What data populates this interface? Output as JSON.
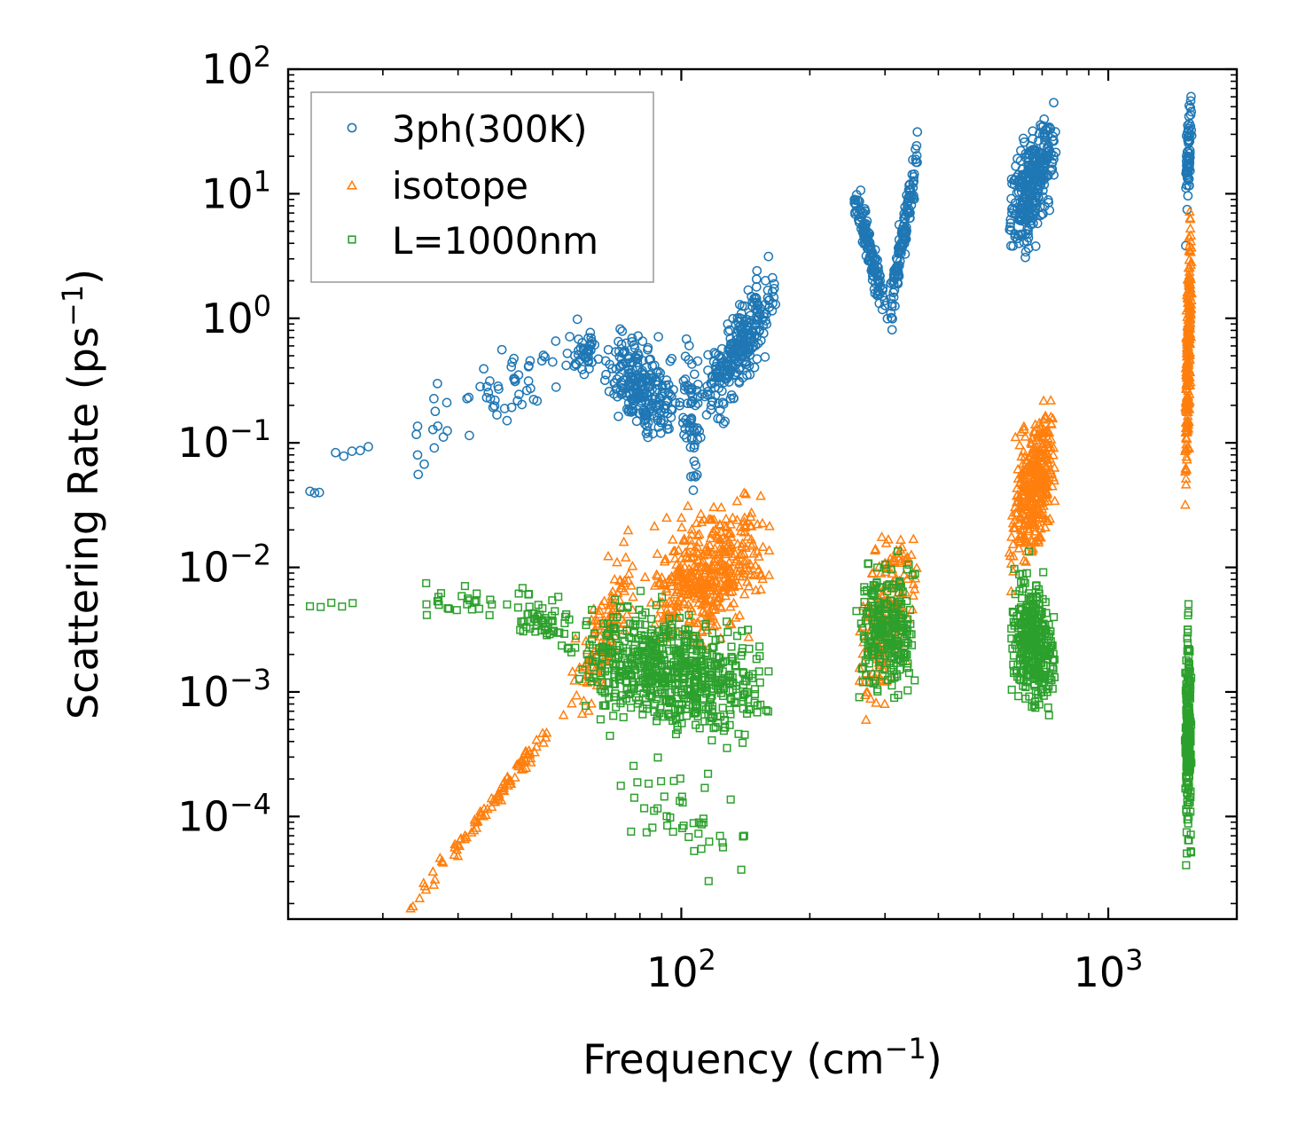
{
  "chart_data": {
    "type": "scatter",
    "title": "",
    "xlabel": "Frequency (cm",
    "xlabel_sup": "−1",
    "xlabel_end": ")",
    "ylabel": "Scattering Rate (ps",
    "ylabel_sup": "−1",
    "ylabel_end": ")",
    "xscale": "log",
    "yscale": "log",
    "xlim": [
      12,
      2000
    ],
    "ylim": [
      1.5e-05,
      100
    ],
    "x_major_ticks": [
      {
        "value": 100,
        "base": "10",
        "exp": "2"
      },
      {
        "value": 1000,
        "base": "10",
        "exp": "3"
      }
    ],
    "y_major_ticks": [
      {
        "value": 0.0001,
        "base": "10",
        "exp": "−4"
      },
      {
        "value": 0.001,
        "base": "10",
        "exp": "−3"
      },
      {
        "value": 0.01,
        "base": "10",
        "exp": "−2"
      },
      {
        "value": 0.1,
        "base": "10",
        "exp": "−1"
      },
      {
        "value": 1,
        "base": "10",
        "exp": "0"
      },
      {
        "value": 10,
        "base": "10",
        "exp": "1"
      },
      {
        "value": 100,
        "base": "10",
        "exp": "2"
      }
    ],
    "legend_position": "top-left",
    "series": [
      {
        "name": "3ph(300K)",
        "marker": "circle",
        "color": "#1f77b4",
        "segments": [
          {
            "x": [
              13.5,
              14.2
            ],
            "y": [
              0.04,
              0.038
            ],
            "n": 3,
            "spread": 0.05
          },
          {
            "x": [
              15.5,
              18.5
            ],
            "y": [
              0.078,
              0.088
            ],
            "n": 5,
            "spread": 0.06
          },
          {
            "x": [
              22,
              30
            ],
            "y": [
              0.06,
              0.2
            ],
            "n": 14,
            "spread": 0.45
          },
          {
            "x": [
              30,
              52
            ],
            "y": [
              0.2,
              0.4
            ],
            "n": 45,
            "spread": 0.3
          },
          {
            "x": [
              52,
              65
            ],
            "y": [
              0.55,
              0.5
            ],
            "n": 40,
            "spread": 0.2
          },
          {
            "x": [
              65,
              100
            ],
            "y": [
              0.5,
              0.18
            ],
            "n": 240,
            "spread": 0.35
          },
          {
            "x": [
              100,
              112
            ],
            "y": [
              0.18,
              0.15
            ],
            "n": 60,
            "spread": 0.55
          },
          {
            "x": [
              112,
              168
            ],
            "y": [
              0.2,
              1.8
            ],
            "n": 260,
            "spread": 0.32
          },
          {
            "x": [
              250,
              305
            ],
            "y": [
              12,
              1.0
            ],
            "n": 140,
            "spread": 0.18
          },
          {
            "x": [
              305,
              360
            ],
            "y": [
              1.0,
              22
            ],
            "n": 140,
            "spread": 0.18
          },
          {
            "x": [
              580,
              760
            ],
            "y": [
              6,
              25
            ],
            "n": 320,
            "spread": 0.4
          },
          {
            "x": [
              1510,
              1570
            ],
            "y": [
              10,
              40
            ],
            "n": 70,
            "spread": 0.35
          }
        ]
      },
      {
        "name": "isotope",
        "marker": "triangle",
        "color": "#ff7f0e",
        "segments": [
          {
            "x": [
              22,
              55
            ],
            "y": [
              1.5e-05,
              0.0008
            ],
            "n": 90,
            "spread": 0.08
          },
          {
            "x": [
              55,
              80
            ],
            "y": [
              0.001,
              0.01
            ],
            "n": 120,
            "spread": 0.4
          },
          {
            "x": [
              80,
              165
            ],
            "y": [
              0.005,
              0.015
            ],
            "n": 420,
            "spread": 0.45
          },
          {
            "x": [
              255,
              360
            ],
            "y": [
              0.002,
              0.01
            ],
            "n": 200,
            "spread": 0.55
          },
          {
            "x": [
              585,
              760
            ],
            "y": [
              0.02,
              0.1
            ],
            "n": 360,
            "spread": 0.5
          },
          {
            "x": [
              1510,
              1570
            ],
            "y": [
              0.1,
              3.0
            ],
            "n": 240,
            "spread": 0.7
          }
        ]
      },
      {
        "name": "L=1000nm",
        "marker": "square",
        "color": "#2ca02c",
        "segments": [
          {
            "x": [
              13.5,
              17
            ],
            "y": [
              0.005,
              0.0052
            ],
            "n": 5,
            "spread": 0.05
          },
          {
            "x": [
              22,
              40
            ],
            "y": [
              0.005,
              0.0055
            ],
            "n": 25,
            "spread": 0.12
          },
          {
            "x": [
              40,
              58
            ],
            "y": [
              0.0048,
              0.003
            ],
            "n": 60,
            "spread": 0.18
          },
          {
            "x": [
              55,
              165
            ],
            "y": [
              0.002,
              0.001
            ],
            "n": 650,
            "spread": 0.45
          },
          {
            "x": [
              70,
              160
            ],
            "y": [
              0.0002,
              5e-05
            ],
            "n": 45,
            "spread": 0.4
          },
          {
            "x": [
              255,
              360
            ],
            "y": [
              0.003,
              0.003
            ],
            "n": 240,
            "spread": 0.45
          },
          {
            "x": [
              585,
              760
            ],
            "y": [
              0.003,
              0.002
            ],
            "n": 360,
            "spread": 0.5
          },
          {
            "x": [
              1510,
              1570
            ],
            "y": [
              0.0005,
              0.0005
            ],
            "n": 220,
            "spread": 0.8
          }
        ]
      }
    ]
  }
}
